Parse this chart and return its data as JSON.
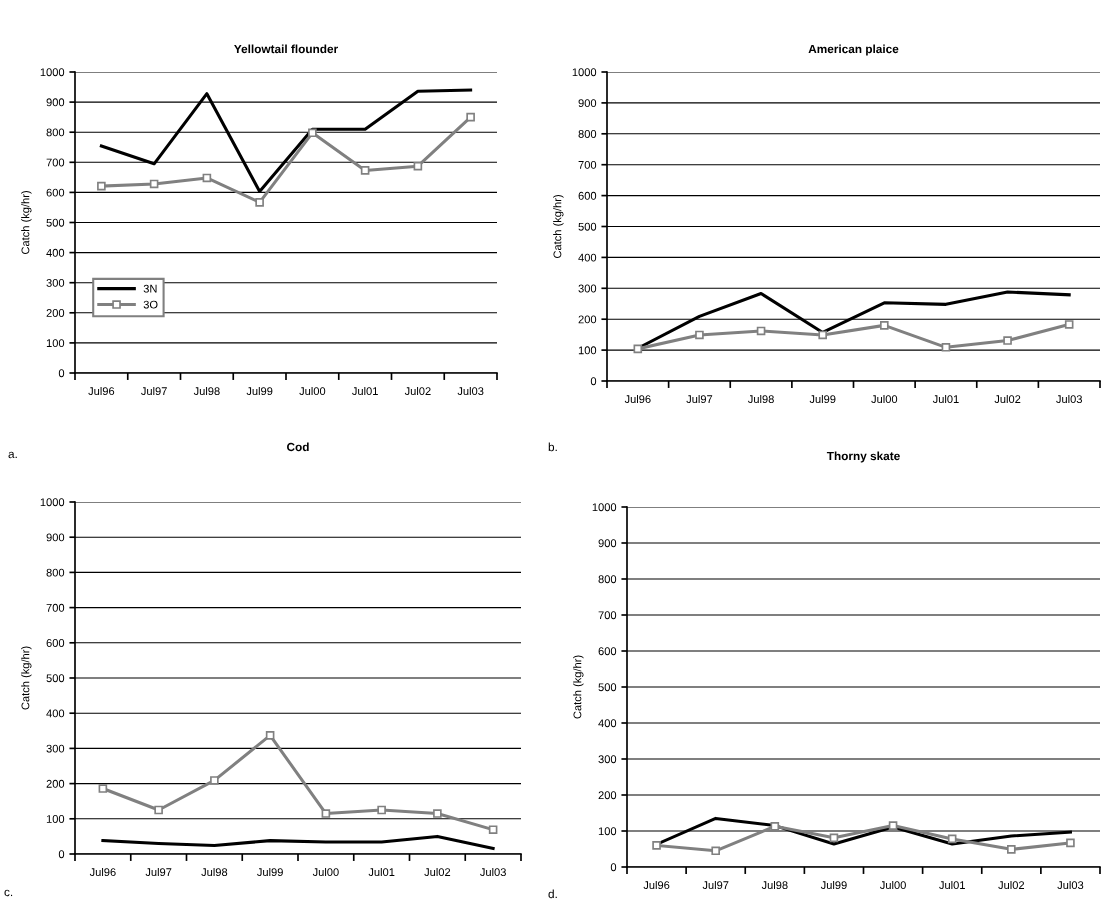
{
  "chart_data": [
    {
      "type": "line",
      "title": "Yellowtail flounder",
      "ylabel": "Catch (kg/hr)",
      "categories": [
        "Jul96",
        "Jul97",
        "Jul98",
        "Jul99",
        "Jul00",
        "Jul01",
        "Jul02",
        "Jul03"
      ],
      "ylim": [
        0,
        1000
      ],
      "yticks": [
        0,
        100,
        200,
        300,
        400,
        500,
        600,
        700,
        800,
        900,
        1000
      ],
      "grid": "y",
      "legend": "lower left",
      "annotations": [
        "a."
      ],
      "series": [
        {
          "name": "3N",
          "color": "#000000",
          "marker": "none",
          "values": [
            754,
            695,
            928,
            603,
            810,
            810,
            936,
            940
          ]
        },
        {
          "name": "3O",
          "color": "#808080",
          "marker": "square",
          "values": [
            621,
            628,
            648,
            567,
            798,
            673,
            687,
            850
          ]
        }
      ]
    },
    {
      "type": "line",
      "title": "American plaice",
      "ylabel": "Catch (kg/hr)",
      "categories": [
        "Jul96",
        "Jul97",
        "Jul98",
        "Jul99",
        "Jul00",
        "Jul01",
        "Jul02",
        "Jul03"
      ],
      "ylim": [
        0,
        1000
      ],
      "yticks": [
        0,
        100,
        200,
        300,
        400,
        500,
        600,
        700,
        800,
        900,
        1000
      ],
      "grid": "y",
      "annotations": [
        "b."
      ],
      "series": [
        {
          "color": "#000000",
          "marker": "none",
          "values": [
            106,
            209,
            283,
            157,
            253,
            248,
            288,
            279
          ]
        },
        {
          "color": "#808080",
          "marker": "square",
          "values": [
            104,
            149,
            162,
            149,
            180,
            109,
            131,
            183
          ]
        }
      ]
    },
    {
      "type": "line",
      "title": "Cod",
      "ylabel": "Catch (kg/hr)",
      "categories": [
        "Jul96",
        "Jul97",
        "Jul98",
        "Jul99",
        "Jul00",
        "Jul01",
        "Jul02",
        "Jul03"
      ],
      "ylim": [
        0,
        1000
      ],
      "yticks": [
        0,
        100,
        200,
        300,
        400,
        500,
        600,
        700,
        800,
        900,
        1000
      ],
      "grid": "y",
      "annotations": [
        "c."
      ],
      "series": [
        {
          "color": "#000000",
          "marker": "none",
          "values": [
            38,
            30,
            24,
            38,
            34,
            34,
            50,
            16
          ]
        },
        {
          "color": "#808080",
          "marker": "square",
          "values": [
            186,
            125,
            209,
            337,
            115,
            125,
            115,
            69
          ]
        }
      ]
    },
    {
      "type": "line",
      "title": "Thorny skate",
      "ylabel": "Catch (kg/hr)",
      "categories": [
        "Jul96",
        "Jul97",
        "Jul98",
        "Jul99",
        "Jul00",
        "Jul01",
        "Jul02",
        "Jul03"
      ],
      "ylim": [
        0,
        1000
      ],
      "yticks": [
        0,
        100,
        200,
        300,
        400,
        500,
        600,
        700,
        800,
        900,
        1000
      ],
      "grid": "y",
      "annotations": [
        "d."
      ],
      "series": [
        {
          "color": "#000000",
          "marker": "none",
          "values": [
            63,
            135,
            115,
            64,
            111,
            64,
            86,
            97
          ]
        },
        {
          "color": "#808080",
          "marker": "square",
          "values": [
            60,
            45,
            113,
            81,
            115,
            78,
            49,
            67
          ]
        }
      ]
    }
  ]
}
